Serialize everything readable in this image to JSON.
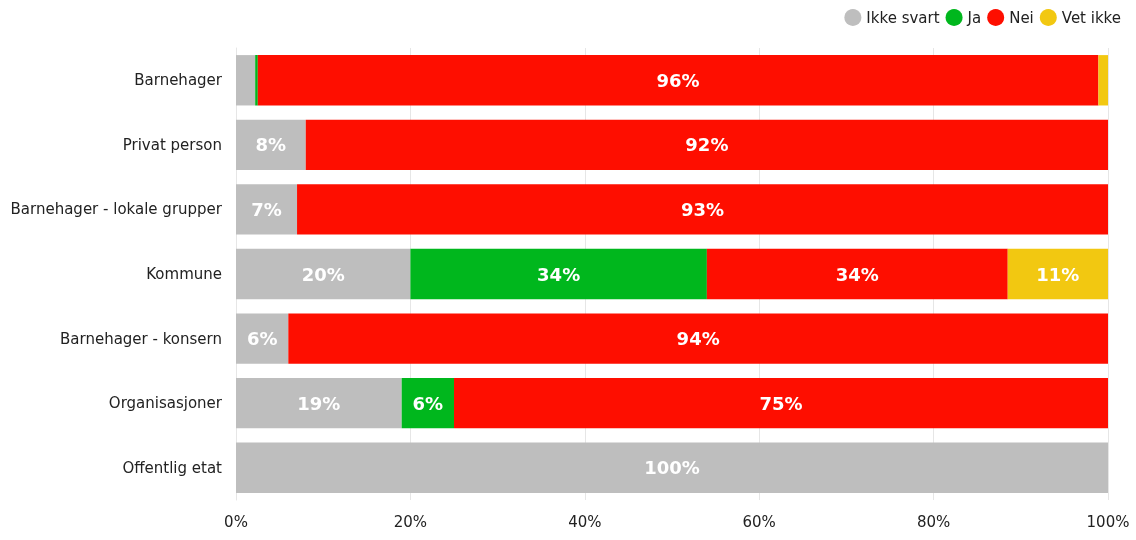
{
  "chart_data": {
    "type": "bar",
    "orientation": "horizontal",
    "stacked": true,
    "categories": [
      "Barnehager",
      "Privat person",
      "Barnehager - lokale grupper",
      "Kommune",
      "Barnehager - konsern",
      "Organisasjoner",
      "Offentlig etat"
    ],
    "series": [
      {
        "name": "Ikke svart",
        "color": "#bebebe",
        "values": [
          2.2,
          8,
          7,
          20,
          6,
          19,
          100
        ],
        "value_labels": [
          null,
          "8%",
          "7%",
          "20%",
          "6%",
          "19%",
          "100%"
        ]
      },
      {
        "name": "Ja",
        "color": "#00b71d",
        "values": [
          0.3,
          null,
          null,
          34,
          null,
          6,
          null
        ],
        "value_labels": [
          null,
          null,
          null,
          "34%",
          null,
          "6%",
          null
        ]
      },
      {
        "name": "Nei",
        "color": "#fe0e00",
        "values": [
          96.4,
          92,
          93,
          34.5,
          94,
          75,
          null
        ],
        "value_labels": [
          "96%",
          "92%",
          "93%",
          "34%",
          "94%",
          "75%",
          null
        ]
      },
      {
        "name": "Vet ikke",
        "color": "#f2c811",
        "values": [
          1.1,
          null,
          null,
          11.5,
          null,
          null,
          null
        ],
        "value_labels": [
          null,
          null,
          null,
          "11%",
          null,
          null,
          null
        ]
      }
    ],
    "xlim": [
      0,
      100
    ],
    "xticks": [
      {
        "value": 0,
        "label": "0%"
      },
      {
        "value": 20,
        "label": "20%"
      },
      {
        "value": 40,
        "label": "40%"
      },
      {
        "value": 60,
        "label": "60%"
      },
      {
        "value": 80,
        "label": "80%"
      },
      {
        "value": 100,
        "label": "100%"
      }
    ],
    "grid": "x",
    "legend": "top right"
  }
}
